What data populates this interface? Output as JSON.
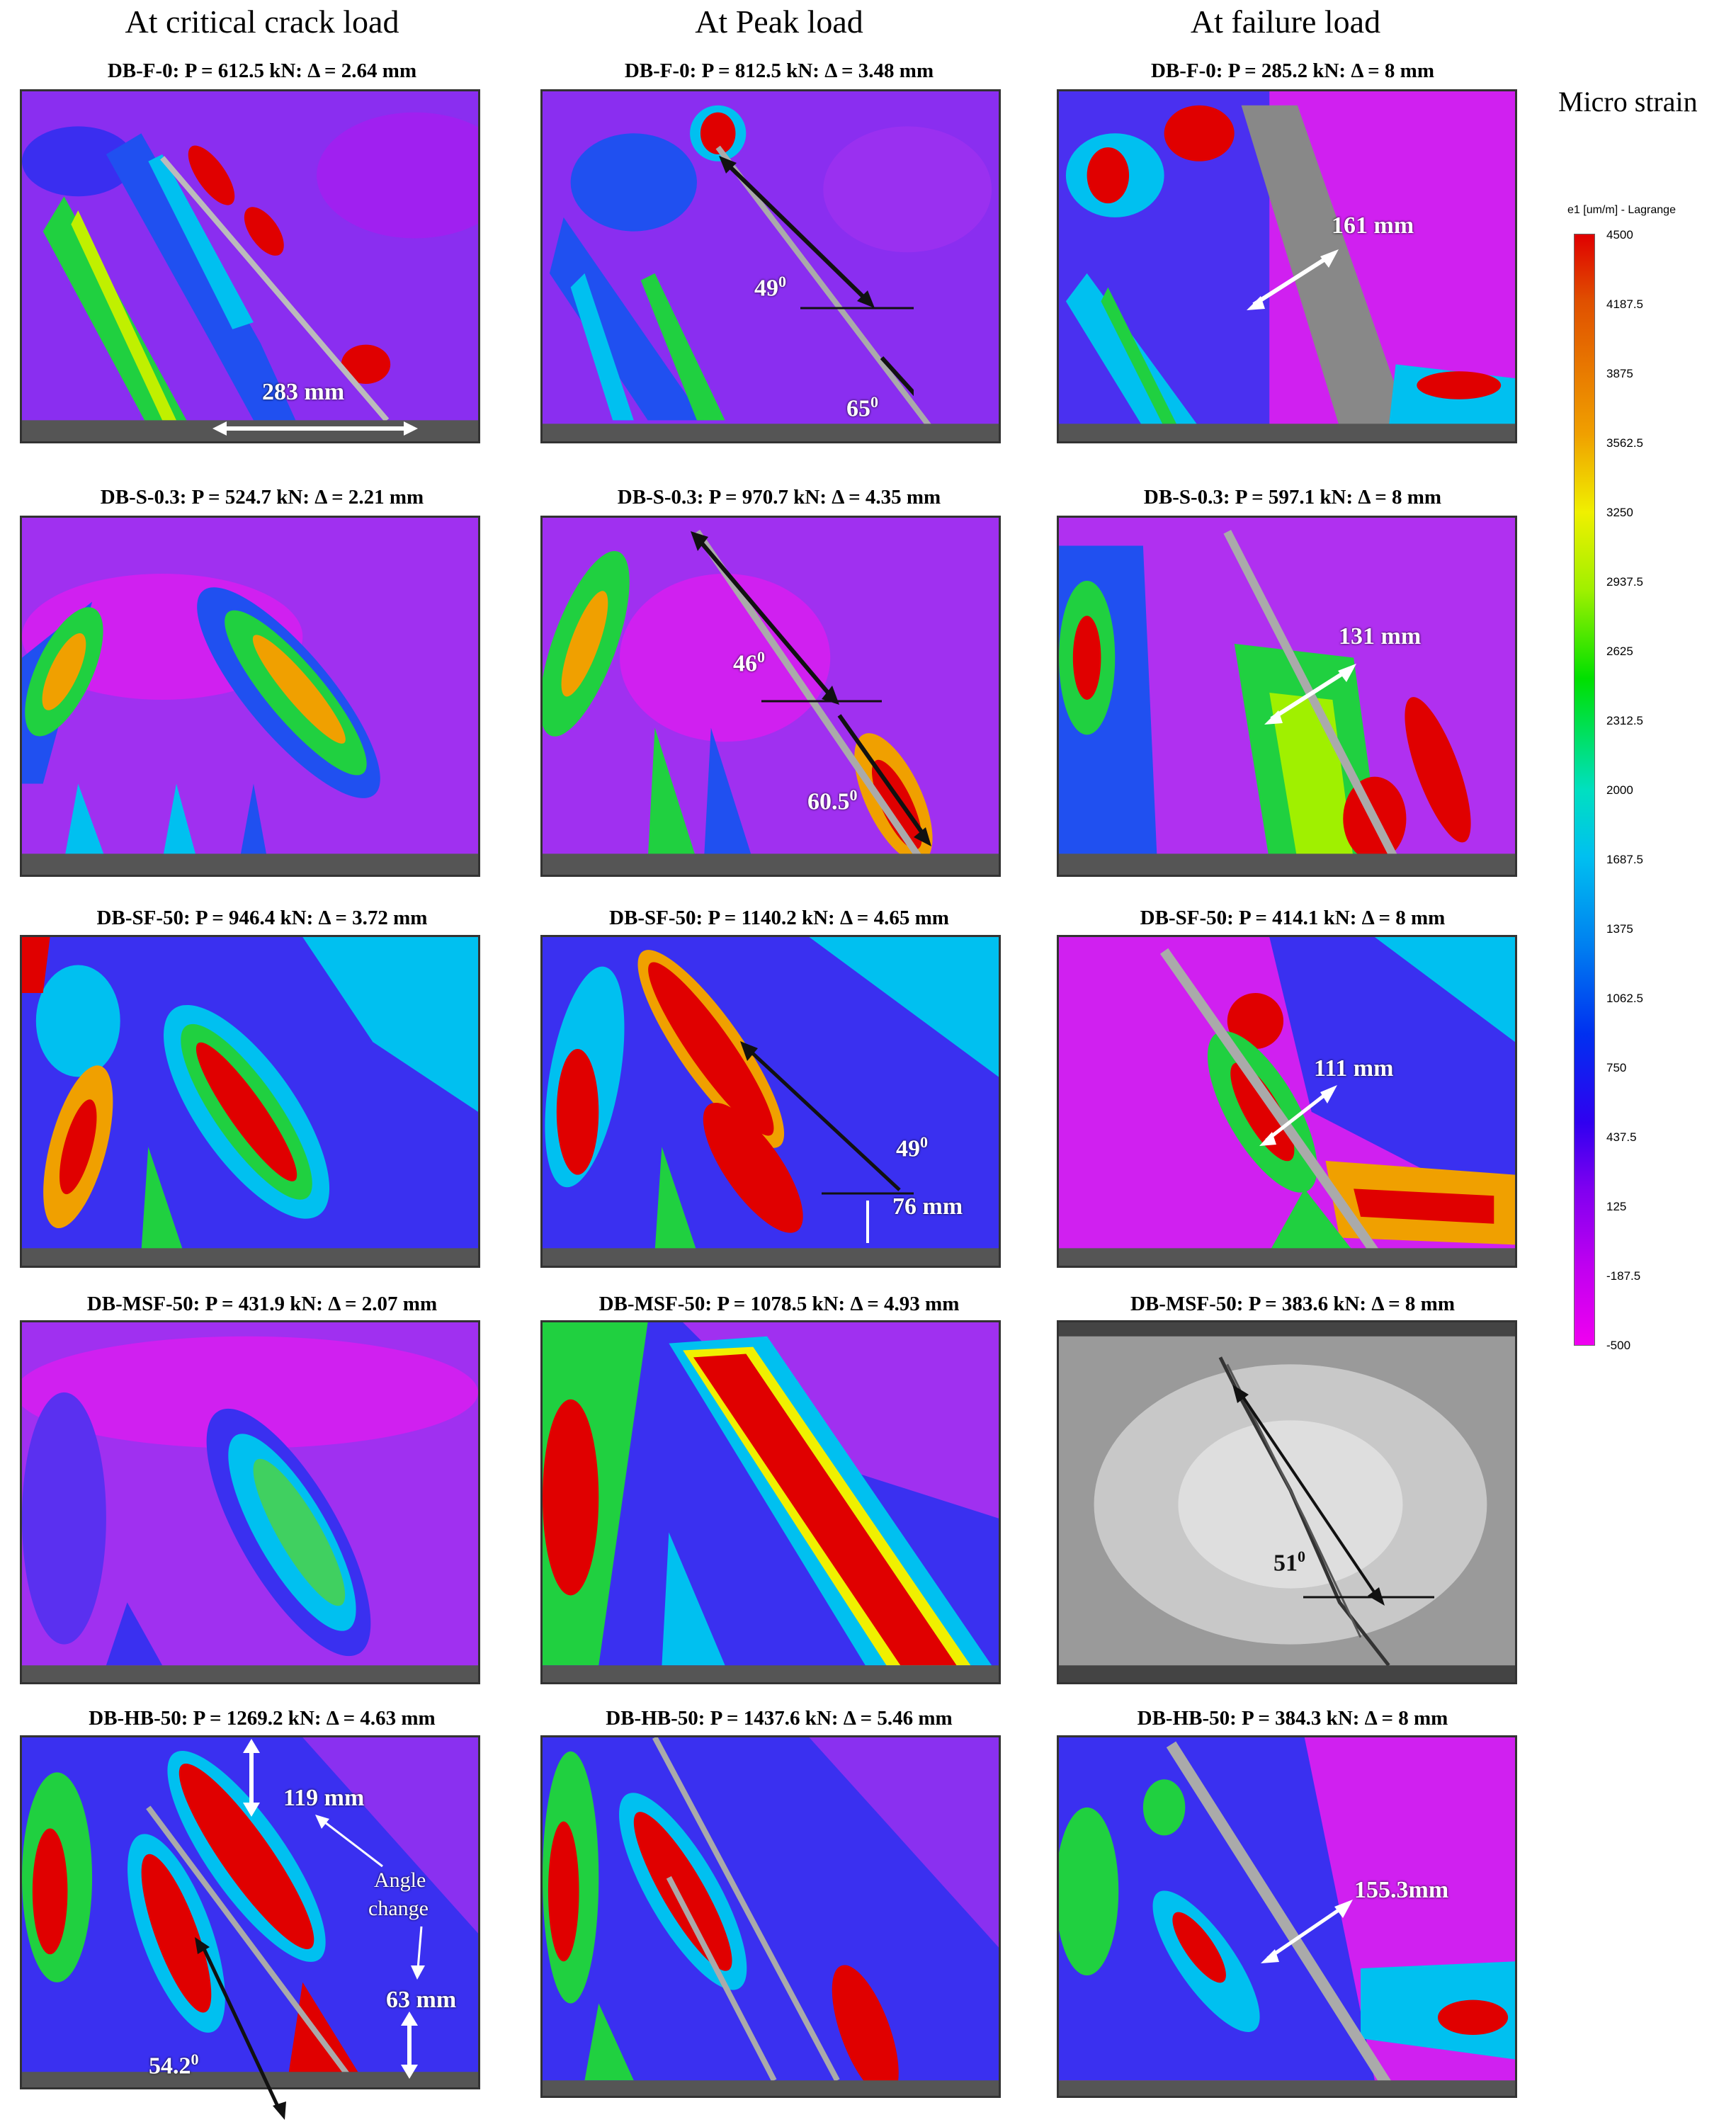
{
  "column_headers": [
    "At critical crack load",
    "At Peak load",
    "At failure load"
  ],
  "rows": [
    {
      "captions": [
        "DB-F-0: P = 612.5 kN: Δ = 2.64 mm",
        "DB-F-0: P = 812.5 kN: Δ = 3.48 mm",
        "DB-F-0: P = 285.2 kN: Δ = 8 mm"
      ]
    },
    {
      "captions": [
        "DB-S-0.3: P = 524.7 kN: Δ = 2.21 mm",
        "DB-S-0.3: P = 970.7 kN: Δ = 4.35 mm",
        "DB-S-0.3: P = 597.1 kN: Δ = 8 mm"
      ]
    },
    {
      "captions": [
        "DB-SF-50: P = 946.4 kN: Δ = 3.72 mm",
        "DB-SF-50: P = 1140.2 kN: Δ = 4.65 mm",
        "DB-SF-50: P = 414.1 kN: Δ = 8 mm"
      ]
    },
    {
      "captions": [
        "DB-MSF-50: P = 431.9 kN: Δ = 2.07 mm",
        "DB-MSF-50: P = 1078.5 kN: Δ = 4.93 mm",
        "DB-MSF-50: P = 383.6 kN: Δ = 8 mm"
      ]
    },
    {
      "captions": [
        "DB-HB-50: P = 1269.2 kN: Δ = 4.63 mm",
        "DB-HB-50: P = 1437.6 kN: Δ = 5.46 mm",
        "DB-HB-50: P = 384.3 kN: Δ = 8 mm"
      ]
    }
  ],
  "annotations": {
    "f0_crit_width": "283 mm",
    "f0_peak_angle1": "49",
    "f0_peak_angle2": "65",
    "f0_fail_width": "161 mm",
    "s03_peak_angle1": "46",
    "s03_peak_angle2": "60.5",
    "s03_fail_width": "131 mm",
    "sf50_peak_angle": "49",
    "sf50_peak_width": "76 mm",
    "sf50_fail_width": "111 mm",
    "msf50_fail_angle": "51",
    "hb50_crit_width1": "119 mm",
    "hb50_crit_note1": "Angle",
    "hb50_crit_note2": "change",
    "hb50_crit_width2": "63 mm",
    "hb50_crit_angle": "54.2",
    "hb50_fail_width": "155.3mm",
    "degree": "0"
  },
  "legend": {
    "title": "Micro strain",
    "label": "e1 [um/m] - Lagrange",
    "ticks": [
      "4500",
      "4187.5",
      "3875",
      "3562.5",
      "3250",
      "2937.5",
      "2625",
      "2312.5",
      "2000",
      "1687.5",
      "1375",
      "1062.5",
      "750",
      "437.5",
      "125",
      "-187.5",
      "-500"
    ],
    "colors": {
      "high": "#e00000",
      "mid": "#00e000",
      "low": "#f000f0"
    }
  }
}
